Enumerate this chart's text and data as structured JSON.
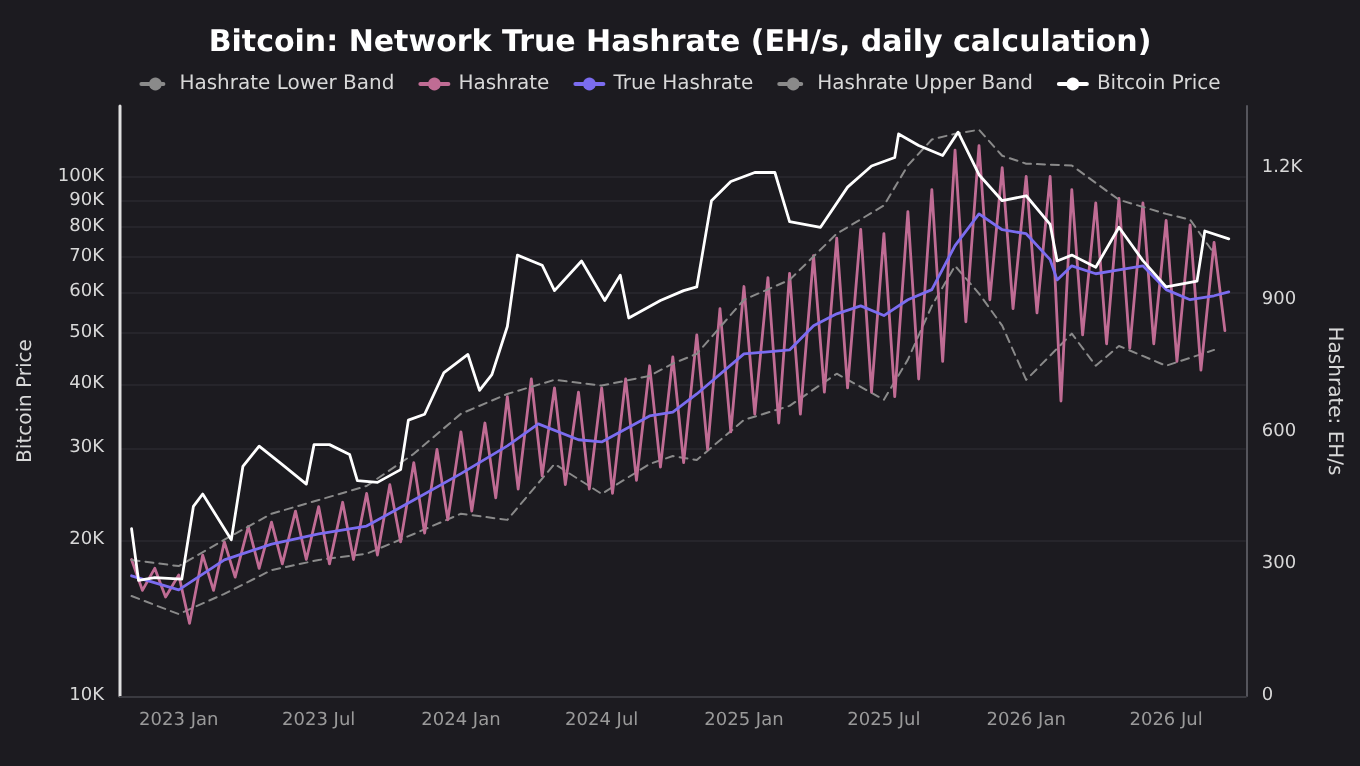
{
  "chart_data": {
    "type": "line",
    "title": "Bitcoin: Network True Hashrate (EH/s, daily calculation)",
    "ylabel": "Bitcoin Price",
    "y2label": "Hashrate: EH/s",
    "log": "y",
    "grid": "y",
    "legend": "top",
    "marker": "none",
    "xlim": [
      "2022-10-17",
      "2026-10-12"
    ],
    "xticks": [
      {
        "value": "2023-01",
        "label": "2023 Jan"
      },
      {
        "value": "2023-07",
        "label": "2023 Jul"
      },
      {
        "value": "2024-01",
        "label": "2024 Jan"
      },
      {
        "value": "2024-07",
        "label": "2024 Jul"
      },
      {
        "value": "2025-01",
        "label": "2025 Jan"
      },
      {
        "value": "2025-07",
        "label": "2025 Jul"
      },
      {
        "value": "2026-01",
        "label": "2026 Jan"
      },
      {
        "value": "2026-07",
        "label": "2026 Jul"
      }
    ],
    "ylim": [
      10000,
      137000
    ],
    "yticks": [
      {
        "value": 10000,
        "label": "10K"
      },
      {
        "value": 20000,
        "label": "20K"
      },
      {
        "value": 30000,
        "label": "30K"
      },
      {
        "value": 40000,
        "label": "40K"
      },
      {
        "value": 50000,
        "label": "50K"
      },
      {
        "value": 60000,
        "label": "60K"
      },
      {
        "value": 70000,
        "label": "70K"
      },
      {
        "value": 80000,
        "label": "80K"
      },
      {
        "value": 90000,
        "label": "90K"
      },
      {
        "value": 100000,
        "label": "100K"
      }
    ],
    "y2lim": [
      0,
      1340
    ],
    "y2ticks": [
      0,
      300,
      600,
      900,
      {
        "value": 1200,
        "label": "1.2K"
      }
    ],
    "series": [
      {
        "name": "Hashrate Lower Band",
        "color": "#8a8a8a",
        "line_style": "dashed",
        "axis": "y2",
        "x": [
          "2022-11",
          "2023-01",
          "2023-03",
          "2023-05",
          "2023-07",
          "2023-09",
          "2023-11",
          "2024-01",
          "2024-03",
          "2024-05",
          "2024-07",
          "2024-09",
          "2024-10",
          "2024-11",
          "2025-01",
          "2025-03",
          "2025-05",
          "2025-07",
          "2025-08",
          "2025-09",
          "2025-10",
          "2025-11",
          "2025-12",
          "2026-01",
          "2026-03",
          "2026-04",
          "2026-05",
          "2026-07",
          "2026-09"
        ],
        "values": [
          227,
          186,
          232,
          286,
          309,
          323,
          368,
          414,
          400,
          527,
          459,
          527,
          545,
          536,
          627,
          659,
          732,
          673,
          764,
          886,
          977,
          914,
          841,
          718,
          823,
          750,
          795,
          750,
          786
        ]
      },
      {
        "name": "Hashrate",
        "color": "#c06c94",
        "line_style": "solid",
        "axis": "y2",
        "x": [
          "2022-11-01",
          "2022-11-15",
          "2022-12-01",
          "2022-12-15",
          "2023-01-01",
          "2023-01-15",
          "2023-02-01",
          "2023-02-15",
          "2023-03-01",
          "2023-03-15",
          "2023-04-01",
          "2023-04-15",
          "2023-05-01",
          "2023-05-15",
          "2023-06-01",
          "2023-06-15",
          "2023-07-01",
          "2023-07-15",
          "2023-08-01",
          "2023-08-15",
          "2023-09-01",
          "2023-09-15",
          "2023-10-01",
          "2023-10-15",
          "2023-11-01",
          "2023-11-15",
          "2023-12-01",
          "2023-12-15",
          "2024-01-01",
          "2024-01-15",
          "2024-02-01",
          "2024-02-15",
          "2024-03-01",
          "2024-03-15",
          "2024-04-01",
          "2024-04-15",
          "2024-05-01",
          "2024-05-15",
          "2024-06-01",
          "2024-06-15",
          "2024-07-01",
          "2024-07-15",
          "2024-08-01",
          "2024-08-15",
          "2024-09-01",
          "2024-09-15",
          "2024-10-01",
          "2024-10-15",
          "2024-11-01",
          "2024-11-15",
          "2024-12-01",
          "2024-12-15",
          "2025-01-01",
          "2025-01-15",
          "2025-02-01",
          "2025-02-15",
          "2025-03-01",
          "2025-03-15",
          "2025-04-01",
          "2025-04-15",
          "2025-05-01",
          "2025-05-15",
          "2025-06-01",
          "2025-06-15",
          "2025-07-01",
          "2025-07-15",
          "2025-08-01",
          "2025-08-15",
          "2025-09-01",
          "2025-09-15",
          "2025-10-01",
          "2025-10-15",
          "2025-11-01",
          "2025-11-15",
          "2025-12-01",
          "2025-12-15",
          "2026-01-01",
          "2026-01-15",
          "2026-02-01",
          "2026-02-15",
          "2026-03-01",
          "2026-03-15",
          "2026-04-01",
          "2026-04-15",
          "2026-05-01",
          "2026-05-15",
          "2026-06-01",
          "2026-06-15",
          "2026-07-01",
          "2026-07-15",
          "2026-08-01",
          "2026-08-15",
          "2026-09-01",
          "2026-09-15"
        ],
        "values": [
          310,
          240,
          290,
          225,
          275,
          165,
          320,
          240,
          350,
          270,
          385,
          290,
          395,
          300,
          420,
          310,
          430,
          300,
          440,
          310,
          460,
          320,
          480,
          350,
          530,
          370,
          560,
          400,
          600,
          420,
          620,
          450,
          680,
          470,
          720,
          500,
          700,
          480,
          690,
          470,
          700,
          460,
          720,
          490,
          750,
          520,
          770,
          530,
          820,
          560,
          880,
          600,
          930,
          640,
          950,
          620,
          960,
          640,
          1000,
          690,
          1040,
          700,
          1060,
          690,
          1050,
          680,
          1100,
          720,
          1150,
          760,
          1240,
          850,
          1250,
          900,
          1200,
          880,
          1180,
          870,
          1180,
          670,
          1150,
          820,
          1120,
          800,
          1130,
          790,
          1120,
          800,
          1080,
          760,
          1070,
          740,
          1030,
          830
        ]
      },
      {
        "name": "True Hashrate",
        "color": "#7b6cf0",
        "line_style": "solid",
        "axis": "y2",
        "x": [
          "2022-11",
          "2023-01",
          "2023-03",
          "2023-05",
          "2023-07",
          "2023-09",
          "2023-11",
          "2024-01",
          "2024-03",
          "2024-04-10",
          "2024-06",
          "2024-07",
          "2024-09",
          "2024-10",
          "2024-11",
          "2025-01",
          "2025-03",
          "2025-04",
          "2025-05",
          "2025-06",
          "2025-07",
          "2025-08",
          "2025-09",
          "2025-10",
          "2025-11",
          "2025-12",
          "2026-01",
          "2026-02",
          "2026-02-10",
          "2026-03",
          "2026-04",
          "2026-05",
          "2026-06",
          "2026-07",
          "2026-08",
          "2026-09",
          "2026-09-20"
        ],
        "values": [
          273,
          241,
          309,
          345,
          368,
          386,
          445,
          505,
          568,
          618,
          582,
          577,
          636,
          645,
          686,
          777,
          786,
          841,
          868,
          886,
          864,
          900,
          923,
          1023,
          1095,
          1059,
          1050,
          991,
          945,
          977,
          959,
          968,
          977,
          923,
          900,
          909,
          918
        ]
      },
      {
        "name": "Hashrate Upper Band",
        "color": "#8a8a8a",
        "line_style": "dashed",
        "axis": "y2",
        "x": [
          "2022-11",
          "2023-01",
          "2023-03",
          "2023-05",
          "2023-07",
          "2023-09",
          "2023-11",
          "2024-01",
          "2024-03",
          "2024-05",
          "2024-07",
          "2024-09",
          "2024-10",
          "2024-11",
          "2025-01",
          "2025-03",
          "2025-05",
          "2025-07",
          "2025-08",
          "2025-09",
          "2025-10",
          "2025-11",
          "2025-12",
          "2026-01",
          "2026-03",
          "2026-05",
          "2026-07",
          "2026-08",
          "2026-09"
        ],
        "values": [
          309,
          295,
          355,
          414,
          445,
          477,
          550,
          641,
          686,
          718,
          705,
          727,
          755,
          777,
          900,
          945,
          1050,
          1114,
          1205,
          1264,
          1277,
          1286,
          1227,
          1209,
          1205,
          1127,
          1095,
          1082,
          1005
        ]
      },
      {
        "name": "Bitcoin Price",
        "color": "#ffffff",
        "line_style": "solid",
        "axis": "y",
        "x": [
          "2022-11-01",
          "2022-11-10",
          "2022-12-01",
          "2023-01-05",
          "2023-01-20",
          "2023-02-01",
          "2023-03-10",
          "2023-03-25",
          "2023-04-15",
          "2023-05-15",
          "2023-06-15",
          "2023-06-25",
          "2023-07-15",
          "2023-08-10",
          "2023-08-20",
          "2023-09-15",
          "2023-10-15",
          "2023-10-25",
          "2023-11-15",
          "2023-12-10",
          "2024-01-10",
          "2024-01-25",
          "2024-02-10",
          "2024-03-01",
          "2024-03-14",
          "2024-04-15",
          "2024-05-01",
          "2024-06-05",
          "2024-07-05",
          "2024-07-25",
          "2024-08-05",
          "2024-09-15",
          "2024-10-15",
          "2024-11-01",
          "2024-11-08",
          "2024-11-20",
          "2024-12-15",
          "2025-01-15",
          "2025-02-10",
          "2025-03-01",
          "2025-04-10",
          "2025-05-15",
          "2025-06-15",
          "2025-07-15",
          "2025-07-20",
          "2025-08-15",
          "2025-09-15",
          "2025-10-05",
          "2025-11-01",
          "2025-12-01",
          "2026-01-01",
          "2026-02-01",
          "2026-02-10",
          "2026-03-01",
          "2026-04-01",
          "2026-05-01",
          "2026-06-01",
          "2026-07-01",
          "2026-08-10",
          "2026-08-20",
          "2026-09-20"
        ],
        "values": [
          21000,
          16700,
          16900,
          16800,
          23200,
          24500,
          20000,
          27700,
          30300,
          27900,
          25600,
          30500,
          30500,
          29200,
          26000,
          25800,
          27300,
          34000,
          34900,
          42000,
          45500,
          38800,
          41600,
          51500,
          70700,
          67600,
          60400,
          68900,
          57800,
          64700,
          53500,
          57800,
          60400,
          61400,
          70700,
          90000,
          98000,
          102000,
          102000,
          82000,
          80000,
          95600,
          105000,
          109000,
          121000,
          115000,
          110000,
          122000,
          101000,
          90000,
          92000,
          81000,
          68900,
          70700,
          67000,
          80000,
          69000,
          61400,
          63000,
          78700,
          76000
        ]
      }
    ]
  }
}
